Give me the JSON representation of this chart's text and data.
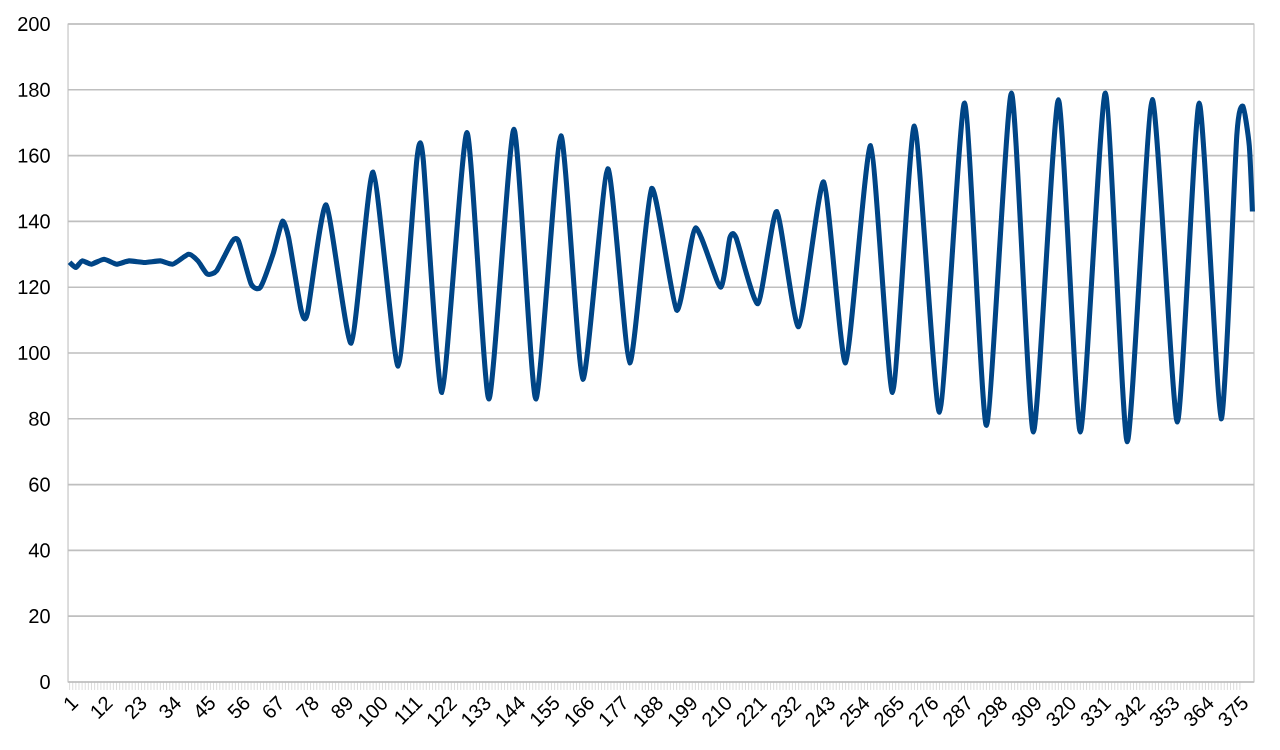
{
  "chart_data": {
    "type": "line",
    "x": [
      1,
      3,
      5,
      8,
      12,
      16,
      20,
      25,
      30,
      34,
      39,
      42,
      45,
      48,
      53,
      55,
      59,
      62,
      66,
      69,
      71,
      75,
      77,
      83,
      91,
      98,
      106,
      112,
      114,
      120,
      128,
      135,
      143,
      150,
      158,
      165,
      173,
      180,
      187,
      195,
      201,
      209,
      212,
      214,
      221,
      227,
      234,
      242,
      249,
      257,
      264,
      271,
      279,
      287,
      294,
      302,
      309,
      317,
      324,
      332,
      339,
      347,
      355,
      362,
      369,
      374,
      376,
      378,
      379
    ],
    "series": [
      {
        "color": "#004586",
        "values": [
          127.6,
          126,
          128,
          127,
          128.5,
          127,
          128,
          127.5,
          128,
          127,
          130,
          128,
          124,
          125,
          134,
          134,
          121,
          120,
          130,
          140,
          135,
          113,
          112,
          145,
          103,
          155,
          96,
          159,
          159,
          88,
          167,
          86,
          168,
          86,
          166,
          92,
          156,
          97,
          150,
          113,
          138,
          120,
          135,
          135,
          115,
          143,
          108,
          152,
          97,
          163,
          88,
          169,
          82,
          176,
          78,
          179,
          76,
          177,
          76,
          179,
          73,
          177,
          79,
          176,
          80,
          166,
          175,
          163,
          143
        ]
      }
    ],
    "xlim": [
      0.5,
      379.5
    ],
    "xticks": [
      1,
      12,
      23,
      34,
      45,
      56,
      67,
      78,
      89,
      100,
      111,
      122,
      133,
      144,
      155,
      166,
      177,
      188,
      199,
      210,
      221,
      232,
      243,
      254,
      265,
      276,
      287,
      298,
      309,
      320,
      331,
      342,
      353,
      364,
      375
    ],
    "ylim": [
      0,
      200
    ],
    "yticks": [
      0,
      20,
      40,
      60,
      80,
      100,
      120,
      140,
      160,
      180,
      200
    ],
    "grid": "y"
  }
}
